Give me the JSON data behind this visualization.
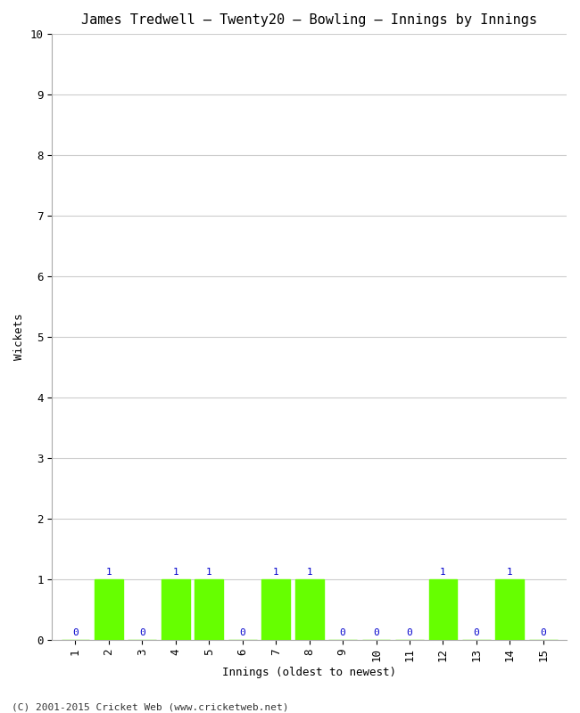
{
  "title": "James Tredwell – Twenty20 – Bowling – Innings by Innings",
  "xlabel": "Innings (oldest to newest)",
  "ylabel": "Wickets",
  "innings": [
    1,
    2,
    3,
    4,
    5,
    6,
    7,
    8,
    9,
    10,
    11,
    12,
    13,
    14,
    15
  ],
  "wickets": [
    0,
    1,
    0,
    1,
    1,
    0,
    1,
    1,
    0,
    0,
    0,
    1,
    0,
    1,
    0
  ],
  "bar_color": "#66ff00",
  "bar_edge_color": "#66ff00",
  "ylim": [
    0,
    10
  ],
  "yticks": [
    0,
    1,
    2,
    3,
    4,
    5,
    6,
    7,
    8,
    9,
    10
  ],
  "label_color": "#0000cc",
  "background_color": "#ffffff",
  "grid_color": "#cccccc",
  "footer_text": "(C) 2001-2015 Cricket Web (www.cricketweb.net)",
  "title_fontsize": 11,
  "axis_label_fontsize": 9,
  "tick_label_fontsize": 9,
  "bar_label_fontsize": 8,
  "footer_fontsize": 8
}
